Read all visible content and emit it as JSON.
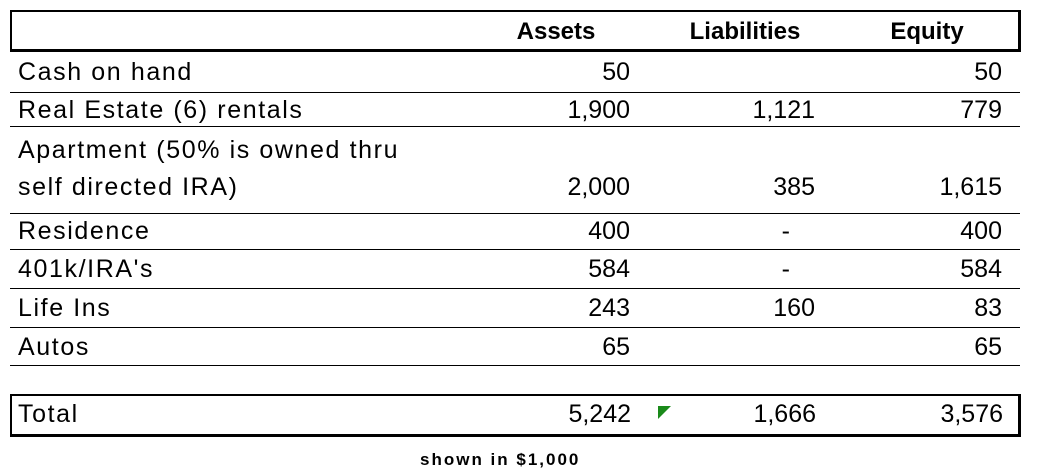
{
  "header": {
    "assets": "Assets",
    "liabilities": "Liabilities",
    "equity": "Equity"
  },
  "rows": [
    {
      "label": "Cash on hand",
      "assets": "50",
      "liabilities": "",
      "equity": "50"
    },
    {
      "label": "Real Estate (6) rentals",
      "assets": "1,900",
      "liabilities": "1,121",
      "equity": "779"
    },
    {
      "label_line1": "Apartment (50% is owned thru",
      "label_line2": "self directed IRA)",
      "assets": "2,000",
      "liabilities": "385",
      "equity": "1,615"
    },
    {
      "label": "Residence",
      "assets": "400",
      "liabilities": "-",
      "equity": "400"
    },
    {
      "label": "401k/IRA's",
      "assets": "584",
      "liabilities": "-",
      "equity": "584"
    },
    {
      "label": "Life Ins",
      "assets": "243",
      "liabilities": "160",
      "equity": "83"
    },
    {
      "label": "Autos",
      "assets": "65",
      "liabilities": "",
      "equity": "65"
    }
  ],
  "total": {
    "label": "Total",
    "assets": "5,242",
    "liabilities": "1,666",
    "equity": "3,576"
  },
  "footnote": "shown in $1,000",
  "colors": {
    "comment_indicator": "#1a8a1a"
  }
}
